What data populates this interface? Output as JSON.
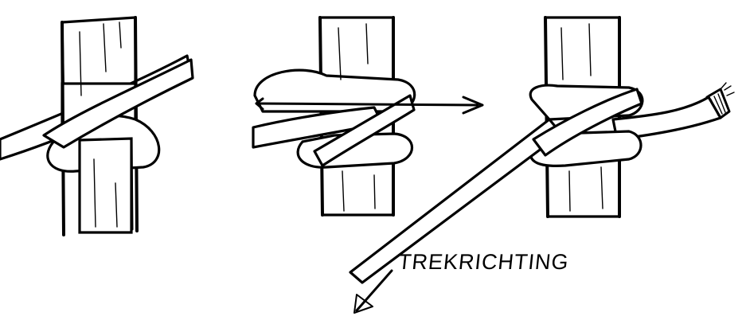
{
  "label": {
    "pull_direction": "TREKRICHTING"
  },
  "colors": {
    "ink": "#000000",
    "paper": "#ffffff"
  },
  "steps": [
    {
      "name": "step-1"
    },
    {
      "name": "step-2"
    },
    {
      "name": "step-3"
    }
  ]
}
